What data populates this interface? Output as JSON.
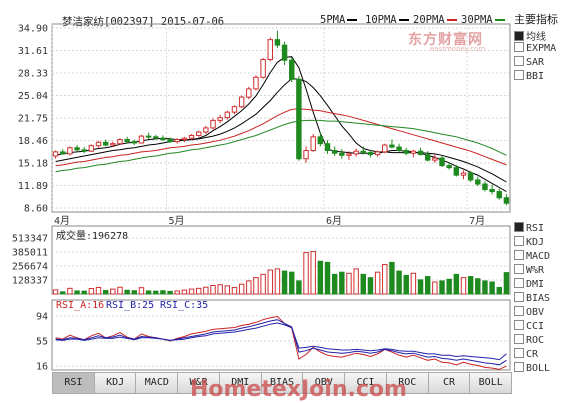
{
  "header": {
    "title": "梦洁家纺[002397] 2015-07-06",
    "ma_legend": [
      {
        "label": "5PMA",
        "color": "#000000"
      },
      {
        "label": "10PMA",
        "color": "#000000"
      },
      {
        "label": "20PMA",
        "color": "#cc2222"
      },
      {
        "label": "30PMA",
        "color": "#228822"
      }
    ]
  },
  "indicators_main": {
    "title": "主要指标",
    "items": [
      {
        "label": "均线",
        "checked": true
      },
      {
        "label": "EXPMA",
        "checked": false
      },
      {
        "label": "SAR",
        "checked": false
      },
      {
        "label": "BBI",
        "checked": false
      }
    ]
  },
  "indicators_sub": {
    "items": [
      {
        "label": "RSI",
        "checked": true
      },
      {
        "label": "KDJ",
        "checked": false
      },
      {
        "label": "MACD",
        "checked": false
      },
      {
        "label": "W%R",
        "checked": false
      },
      {
        "label": "DMI",
        "checked": false
      },
      {
        "label": "BIAS",
        "checked": false
      },
      {
        "label": "OBV",
        "checked": false
      },
      {
        "label": "CCI",
        "checked": false
      },
      {
        "label": "ROC",
        "checked": false
      },
      {
        "label": "CR",
        "checked": false
      },
      {
        "label": "BOLL",
        "checked": false
      }
    ]
  },
  "volume_panel": {
    "label": "成交量:196278"
  },
  "rsi_panel": {
    "labels": [
      {
        "text": "RSI_A:16",
        "color": "#cc2222"
      },
      {
        "text": "RSI_B:25",
        "color": "#2222aa"
      },
      {
        "text": "RSI_C:35",
        "color": "#2222aa"
      }
    ]
  },
  "tabs": [
    "RSI",
    "KDJ",
    "MACD",
    "W&R",
    "DMI",
    "BIAS",
    "OBV",
    "CCI",
    "ROC",
    "CR",
    "BOLL"
  ],
  "active_tab": "RSI",
  "watermark": {
    "top": "东方财富网",
    "top_sub": "eastmoney.com",
    "bottom": "HometexJoin.com"
  },
  "colors": {
    "up": "#d03030",
    "down": "#1f8a1f",
    "grid": "#c9c9c9",
    "axis": "#333333"
  },
  "chart_data": [
    {
      "type": "candlestick",
      "title": "梦洁家纺[002397] 2015-07-06",
      "x_ticks": [
        "4月",
        "5月",
        "6月",
        "7月"
      ],
      "y_ticks": [
        34.9,
        31.61,
        28.33,
        25.04,
        21.75,
        18.46,
        15.18,
        11.89,
        8.6
      ],
      "ylim": [
        8.6,
        34.9
      ],
      "grid": true,
      "candles": [
        [
          16.2,
          17.0,
          15.8,
          16.8
        ],
        [
          16.8,
          17.2,
          16.4,
          16.5
        ],
        [
          16.5,
          17.6,
          16.3,
          17.4
        ],
        [
          17.4,
          17.8,
          16.9,
          17.1
        ],
        [
          17.1,
          17.5,
          16.6,
          16.9
        ],
        [
          16.9,
          17.9,
          16.8,
          17.7
        ],
        [
          17.7,
          18.4,
          17.4,
          18.2
        ],
        [
          18.2,
          18.6,
          17.6,
          17.8
        ],
        [
          17.8,
          18.3,
          17.5,
          18.0
        ],
        [
          18.0,
          18.8,
          17.8,
          18.6
        ],
        [
          18.6,
          19.0,
          18.0,
          18.3
        ],
        [
          18.3,
          18.6,
          17.8,
          18.1
        ],
        [
          18.1,
          19.3,
          18.0,
          19.1
        ],
        [
          19.1,
          19.6,
          18.7,
          19.0
        ],
        [
          19.0,
          19.3,
          18.6,
          18.8
        ],
        [
          18.8,
          19.2,
          18.4,
          18.6
        ],
        [
          18.6,
          18.9,
          18.1,
          18.3
        ],
        [
          18.3,
          18.8,
          18.0,
          18.6
        ],
        [
          18.6,
          19.0,
          18.2,
          18.8
        ],
        [
          18.8,
          19.4,
          18.6,
          19.2
        ],
        [
          19.2,
          19.9,
          19.0,
          19.7
        ],
        [
          19.7,
          20.6,
          19.4,
          20.3
        ],
        [
          20.3,
          21.7,
          20.1,
          21.4
        ],
        [
          21.4,
          22.2,
          21.0,
          21.8
        ],
        [
          21.8,
          22.8,
          21.5,
          22.6
        ],
        [
          22.6,
          23.6,
          22.3,
          23.4
        ],
        [
          23.4,
          25.0,
          23.2,
          24.8
        ],
        [
          24.8,
          26.3,
          24.5,
          26.0
        ],
        [
          26.0,
          28.0,
          25.8,
          27.7
        ],
        [
          27.7,
          30.5,
          27.5,
          30.3
        ],
        [
          30.3,
          33.5,
          30.0,
          33.2
        ],
        [
          33.2,
          34.5,
          32.0,
          32.4
        ],
        [
          32.4,
          32.9,
          29.5,
          30.2
        ],
        [
          30.2,
          30.6,
          27.0,
          27.4
        ],
        [
          27.4,
          27.9,
          15.5,
          15.8
        ],
        [
          15.8,
          17.6,
          15.2,
          17.0
        ],
        [
          17.0,
          19.4,
          16.8,
          19.0
        ],
        [
          19.0,
          19.7,
          17.6,
          18.0
        ],
        [
          18.0,
          18.5,
          16.5,
          17.0
        ],
        [
          17.0,
          17.6,
          16.2,
          16.6
        ],
        [
          16.6,
          17.2,
          15.8,
          16.3
        ],
        [
          16.3,
          16.9,
          15.6,
          16.5
        ],
        [
          16.5,
          17.3,
          16.1,
          16.9
        ],
        [
          16.9,
          17.6,
          16.4,
          16.7
        ],
        [
          16.7,
          17.1,
          16.0,
          16.4
        ],
        [
          16.4,
          17.0,
          16.1,
          16.8
        ],
        [
          16.8,
          18.0,
          16.6,
          17.8
        ],
        [
          17.8,
          18.6,
          17.3,
          17.5
        ],
        [
          17.5,
          18.0,
          16.8,
          17.0
        ],
        [
          17.0,
          17.4,
          16.3,
          16.6
        ],
        [
          16.6,
          17.1,
          16.0,
          16.9
        ],
        [
          16.9,
          17.4,
          16.3,
          16.4
        ],
        [
          16.4,
          16.9,
          15.4,
          15.6
        ],
        [
          15.6,
          16.4,
          15.2,
          15.9
        ],
        [
          15.9,
          16.2,
          14.6,
          14.8
        ],
        [
          14.8,
          15.3,
          14.2,
          14.5
        ],
        [
          14.5,
          14.9,
          13.2,
          13.4
        ],
        [
          13.4,
          14.1,
          12.8,
          13.7
        ],
        [
          13.7,
          14.0,
          12.4,
          12.7
        ],
        [
          12.7,
          13.2,
          11.8,
          12.1
        ],
        [
          12.1,
          12.5,
          11.0,
          11.3
        ],
        [
          11.3,
          12.0,
          10.6,
          11.0
        ],
        [
          11.0,
          11.4,
          9.8,
          10.1
        ],
        [
          10.1,
          10.6,
          9.0,
          9.3
        ]
      ],
      "series": [
        {
          "name": "5PMA",
          "color": "#000000",
          "values": [
            16.3,
            16.5,
            16.7,
            16.8,
            16.9,
            17.1,
            17.3,
            17.4,
            17.6,
            17.9,
            18.1,
            18.2,
            18.4,
            18.6,
            18.7,
            18.8,
            18.7,
            18.6,
            18.6,
            18.6,
            18.8,
            19.2,
            19.9,
            20.5,
            21.2,
            22.0,
            22.8,
            23.8,
            25.0,
            26.6,
            28.4,
            29.9,
            30.6,
            30.7,
            29.1,
            26.0,
            22.6,
            19.5,
            17.2,
            16.9,
            16.8,
            16.7,
            16.6,
            16.6,
            16.6,
            16.6,
            16.8,
            17.0,
            17.0,
            16.9,
            16.8,
            16.6,
            16.3,
            16.0,
            15.6,
            15.2,
            14.7,
            14.3,
            13.8,
            13.4,
            12.8,
            12.2,
            11.6,
            11.0
          ]
        },
        {
          "name": "10PMA",
          "color": "#000000",
          "values": [
            15.4,
            15.6,
            15.8,
            16.0,
            16.2,
            16.4,
            16.6,
            16.8,
            17.0,
            17.1,
            17.3,
            17.4,
            17.6,
            17.8,
            17.9,
            18.1,
            18.3,
            18.4,
            18.5,
            18.6,
            18.7,
            18.9,
            19.1,
            19.4,
            19.8,
            20.3,
            20.9,
            21.6,
            22.3,
            23.3,
            24.3,
            25.5,
            26.6,
            27.5,
            27.4,
            27.1,
            26.2,
            25.0,
            23.6,
            22.1,
            20.6,
            19.4,
            18.1,
            17.3,
            17.0,
            16.8,
            16.8,
            16.7,
            16.7,
            16.7,
            16.7,
            16.7,
            16.6,
            16.5,
            16.3,
            16.0,
            15.7,
            15.4,
            15.0,
            14.6,
            14.1,
            13.6,
            13.0,
            12.4
          ]
        },
        {
          "name": "20PMA",
          "color": "#cc2222",
          "values": [
            14.8,
            14.9,
            15.1,
            15.3,
            15.4,
            15.6,
            15.8,
            16.0,
            16.1,
            16.3,
            16.4,
            16.6,
            16.8,
            16.9,
            17.0,
            17.2,
            17.4,
            17.5,
            17.6,
            17.8,
            17.9,
            18.1,
            18.3,
            18.5,
            18.8,
            19.1,
            19.5,
            19.9,
            20.4,
            20.9,
            21.5,
            22.1,
            22.6,
            23.0,
            23.1,
            23.0,
            22.9,
            22.8,
            22.6,
            22.4,
            22.2,
            22.0,
            21.7,
            21.4,
            21.1,
            20.8,
            20.5,
            20.2,
            19.9,
            19.6,
            19.3,
            19.0,
            18.7,
            18.4,
            18.1,
            17.8,
            17.5,
            17.2,
            16.9,
            16.5,
            16.1,
            15.7,
            15.3,
            14.9
          ]
        },
        {
          "name": "30PMA",
          "color": "#228822",
          "values": [
            13.9,
            14.1,
            14.2,
            14.4,
            14.5,
            14.7,
            14.9,
            15.0,
            15.2,
            15.4,
            15.5,
            15.7,
            15.9,
            16.1,
            16.2,
            16.4,
            16.6,
            16.7,
            16.9,
            17.1,
            17.2,
            17.4,
            17.6,
            17.8,
            18.0,
            18.3,
            18.6,
            18.9,
            19.2,
            19.6,
            20.0,
            20.4,
            20.8,
            21.1,
            21.3,
            21.4,
            21.4,
            21.4,
            21.3,
            21.3,
            21.2,
            21.1,
            21.0,
            20.9,
            20.8,
            20.7,
            20.6,
            20.5,
            20.4,
            20.3,
            20.2,
            20.0,
            19.8,
            19.6,
            19.4,
            19.2,
            19.0,
            18.7,
            18.4,
            18.1,
            17.7,
            17.3,
            16.8,
            16.3
          ]
        }
      ]
    },
    {
      "type": "bar",
      "title": "成交量:196278",
      "y_ticks": [
        513347,
        385011,
        256674,
        128337
      ],
      "ylim": [
        0,
        513347
      ],
      "values": [
        38000,
        20000,
        52000,
        28000,
        26000,
        50000,
        60000,
        32000,
        45000,
        62000,
        34000,
        30000,
        58000,
        28000,
        26000,
        30000,
        24000,
        28000,
        36000,
        45000,
        52000,
        62000,
        78000,
        85000,
        75000,
        60000,
        90000,
        120000,
        150000,
        180000,
        220000,
        230000,
        210000,
        200000,
        120000,
        380000,
        390000,
        300000,
        290000,
        180000,
        200000,
        190000,
        230000,
        180000,
        150000,
        200000,
        270000,
        290000,
        210000,
        170000,
        190000,
        130000,
        160000,
        110000,
        120000,
        135000,
        180000,
        150000,
        160000,
        140000,
        120000,
        110000,
        60000,
        196278
      ],
      "up": [
        true,
        false,
        true,
        false,
        false,
        true,
        true,
        false,
        true,
        true,
        false,
        false,
        true,
        false,
        false,
        false,
        false,
        true,
        true,
        true,
        true,
        true,
        true,
        true,
        true,
        true,
        true,
        true,
        true,
        true,
        true,
        true,
        false,
        false,
        false,
        true,
        true,
        false,
        false,
        false,
        false,
        true,
        true,
        false,
        false,
        true,
        true,
        false,
        false,
        false,
        true,
        false,
        false,
        true,
        false,
        false,
        false,
        true,
        false,
        false,
        false,
        false,
        false,
        false
      ]
    },
    {
      "type": "line",
      "title": "RSI_A:16 RSI_B:25 RSI_C:35",
      "y_ticks": [
        94,
        55,
        16
      ],
      "ylim": [
        10,
        100
      ],
      "series": [
        {
          "name": "RSI_A",
          "color": "#cc2222",
          "values": [
            60,
            58,
            64,
            60,
            57,
            63,
            67,
            60,
            63,
            68,
            61,
            58,
            66,
            62,
            60,
            58,
            55,
            59,
            62,
            66,
            68,
            70,
            73,
            74,
            75,
            76,
            79,
            81,
            84,
            88,
            91,
            93,
            82,
            75,
            27,
            34,
            45,
            38,
            33,
            31,
            30,
            33,
            36,
            34,
            31,
            35,
            42,
            38,
            33,
            30,
            33,
            29,
            25,
            27,
            22,
            21,
            18,
            22,
            19,
            17,
            14,
            13,
            11,
            16
          ]
        },
        {
          "name": "RSI_B",
          "color": "#2222aa",
          "values": [
            58,
            57,
            60,
            59,
            57,
            60,
            63,
            60,
            61,
            64,
            60,
            58,
            62,
            61,
            60,
            58,
            56,
            58,
            60,
            62,
            64,
            66,
            69,
            70,
            71,
            72,
            75,
            77,
            80,
            83,
            86,
            88,
            82,
            77,
            38,
            40,
            44,
            41,
            38,
            37,
            36,
            37,
            39,
            38,
            36,
            38,
            42,
            40,
            37,
            35,
            36,
            33,
            30,
            31,
            28,
            27,
            25,
            27,
            25,
            23,
            21,
            20,
            18,
            25
          ]
        },
        {
          "name": "RSI_C",
          "color": "#2222aa",
          "values": [
            57,
            56,
            58,
            58,
            56,
            58,
            60,
            59,
            59,
            61,
            59,
            57,
            60,
            60,
            59,
            58,
            56,
            57,
            58,
            60,
            62,
            63,
            66,
            67,
            68,
            69,
            71,
            73,
            75,
            78,
            81,
            83,
            80,
            76,
            44,
            45,
            47,
            45,
            43,
            42,
            41,
            41,
            42,
            41,
            40,
            41,
            43,
            42,
            40,
            39,
            39,
            37,
            35,
            35,
            33,
            33,
            31,
            32,
            31,
            30,
            29,
            28,
            26,
            35
          ]
        }
      ]
    }
  ]
}
